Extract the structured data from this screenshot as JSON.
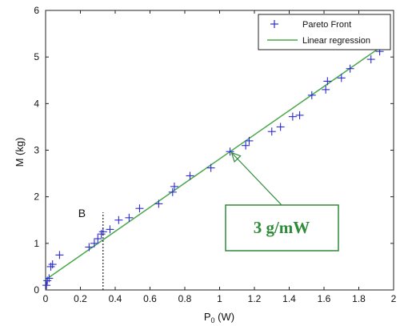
{
  "chart_data": {
    "type": "scatter",
    "xlabel": "P",
    "xlabel_sub": "0",
    "xlabel_unit": " (W)",
    "ylabel": "M (kg)",
    "xlim": [
      0,
      2
    ],
    "ylim": [
      0,
      6
    ],
    "grid": false,
    "legend_position": "top-right",
    "x_ticks": [
      "0",
      "0.2",
      "0.4",
      "0.6",
      "0.8",
      "1",
      "1.2",
      "1.4",
      "1.6",
      "1.8",
      "2"
    ],
    "y_ticks": [
      "0",
      "1",
      "2",
      "3",
      "4",
      "5",
      "6"
    ],
    "series": [
      {
        "name": "Pareto Front",
        "marker": "+",
        "color": "#2a2ad8",
        "points": [
          [
            0.005,
            0.1
          ],
          [
            0.01,
            0.2
          ],
          [
            0.02,
            0.25
          ],
          [
            0.03,
            0.5
          ],
          [
            0.04,
            0.55
          ],
          [
            0.08,
            0.75
          ],
          [
            0.25,
            0.92
          ],
          [
            0.28,
            1.0
          ],
          [
            0.3,
            1.1
          ],
          [
            0.32,
            1.2
          ],
          [
            0.33,
            1.25
          ],
          [
            0.37,
            1.3
          ],
          [
            0.42,
            1.5
          ],
          [
            0.48,
            1.55
          ],
          [
            0.54,
            1.75
          ],
          [
            0.65,
            1.85
          ],
          [
            0.73,
            2.1
          ],
          [
            0.74,
            2.22
          ],
          [
            0.83,
            2.45
          ],
          [
            0.95,
            2.62
          ],
          [
            1.06,
            2.97
          ],
          [
            1.15,
            3.1
          ],
          [
            1.17,
            3.2
          ],
          [
            1.3,
            3.4
          ],
          [
            1.35,
            3.5
          ],
          [
            1.42,
            3.72
          ],
          [
            1.46,
            3.75
          ],
          [
            1.53,
            4.18
          ],
          [
            1.61,
            4.3
          ],
          [
            1.62,
            4.48
          ],
          [
            1.7,
            4.55
          ],
          [
            1.75,
            4.75
          ],
          [
            1.87,
            4.95
          ],
          [
            1.92,
            5.12
          ]
        ]
      },
      {
        "name": "Linear regression",
        "type": "line",
        "color": "#4aa84a",
        "points": [
          [
            0,
            0.22
          ],
          [
            1.94,
            5.25
          ]
        ]
      }
    ],
    "annotations": {
      "vline": {
        "x": 0.33,
        "label": "B"
      },
      "callout": {
        "text": "3 g/mW",
        "arrow_target": [
          1.05,
          3.0
        ]
      }
    }
  }
}
